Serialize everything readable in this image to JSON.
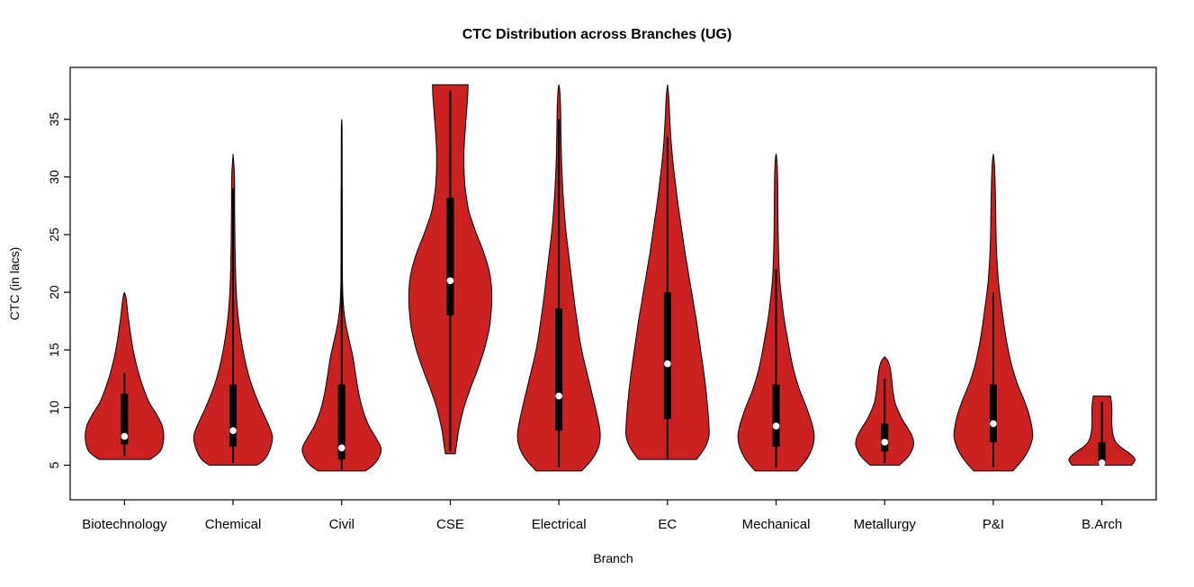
{
  "chart_data": {
    "type": "violin",
    "title": "CTC Distribution across Branches (UG)",
    "xlabel": "Branch",
    "ylabel": "CTC (in lacs)",
    "ylim": [
      2,
      39.5
    ],
    "yticks": [
      5,
      10,
      15,
      20,
      25,
      30,
      35
    ],
    "grid": false,
    "fill_color": "#cb2121",
    "outline_color": "#000000",
    "median_dot_color": "#ffffff",
    "categories": [
      "Biotechnology",
      "Chemical",
      "Civil",
      "CSE",
      "Electrical",
      "EC",
      "Mechanical",
      "Metallurgy",
      "P&I",
      "B.Arch"
    ],
    "violins": [
      {
        "branch": "Biotechnology",
        "width_scale": 0.95,
        "min": 5.5,
        "max": 20,
        "q1": 6.8,
        "median": 7.5,
        "q3": 11.2,
        "whisker_low": 5.8,
        "whisker_high": 13,
        "density": [
          [
            5.5,
            0.65
          ],
          [
            6,
            0.85
          ],
          [
            6.5,
            0.95
          ],
          [
            7.5,
            1.0
          ],
          [
            8.5,
            0.95
          ],
          [
            9.5,
            0.8
          ],
          [
            10.5,
            0.62
          ],
          [
            12,
            0.45
          ],
          [
            13.5,
            0.32
          ],
          [
            15,
            0.22
          ],
          [
            16.5,
            0.15
          ],
          [
            18,
            0.09
          ],
          [
            19.5,
            0.04
          ],
          [
            20,
            0.0
          ]
        ]
      },
      {
        "branch": "Chemical",
        "width_scale": 0.95,
        "min": 5,
        "max": 32,
        "q1": 6.6,
        "median": 8,
        "q3": 12,
        "whisker_low": 5.2,
        "whisker_high": 29,
        "density": [
          [
            5,
            0.6
          ],
          [
            5.5,
            0.8
          ],
          [
            6.5,
            0.95
          ],
          [
            7.5,
            1.0
          ],
          [
            8.5,
            0.9
          ],
          [
            10,
            0.7
          ],
          [
            11.5,
            0.52
          ],
          [
            13,
            0.38
          ],
          [
            15,
            0.25
          ],
          [
            17,
            0.16
          ],
          [
            19,
            0.1
          ],
          [
            21,
            0.07
          ],
          [
            24,
            0.05
          ],
          [
            27,
            0.04
          ],
          [
            30,
            0.035
          ],
          [
            32,
            0.0
          ]
        ]
      },
      {
        "branch": "Civil",
        "width_scale": 0.95,
        "min": 4.5,
        "max": 35,
        "q1": 5.5,
        "median": 6.5,
        "q3": 12,
        "whisker_low": 4.6,
        "whisker_high": 29,
        "density": [
          [
            4.5,
            0.6
          ],
          [
            5,
            0.8
          ],
          [
            5.7,
            0.95
          ],
          [
            6.5,
            1.0
          ],
          [
            7.5,
            0.85
          ],
          [
            8.5,
            0.68
          ],
          [
            10,
            0.52
          ],
          [
            11.5,
            0.42
          ],
          [
            13,
            0.35
          ],
          [
            14.5,
            0.28
          ],
          [
            16,
            0.18
          ],
          [
            17.5,
            0.09
          ],
          [
            19,
            0.04
          ],
          [
            21,
            0.02
          ],
          [
            25,
            0.015
          ],
          [
            30,
            0.012
          ],
          [
            34,
            0.01
          ],
          [
            35,
            0.0
          ]
        ]
      },
      {
        "branch": "CSE",
        "width_scale": 1.0,
        "min": 6,
        "max": 38,
        "q1": 18,
        "median": 21,
        "q3": 28.2,
        "whisker_low": 6.2,
        "whisker_high": 37.5,
        "density": [
          [
            6,
            0.12
          ],
          [
            7,
            0.16
          ],
          [
            8,
            0.2
          ],
          [
            9,
            0.26
          ],
          [
            10,
            0.33
          ],
          [
            11,
            0.42
          ],
          [
            12,
            0.52
          ],
          [
            13,
            0.63
          ],
          [
            14,
            0.73
          ],
          [
            15,
            0.82
          ],
          [
            16,
            0.89
          ],
          [
            17,
            0.95
          ],
          [
            18,
            0.98
          ],
          [
            19,
            1.0
          ],
          [
            20,
            1.0
          ],
          [
            21,
            0.98
          ],
          [
            22,
            0.93
          ],
          [
            23,
            0.85
          ],
          [
            24,
            0.75
          ],
          [
            25,
            0.64
          ],
          [
            26,
            0.54
          ],
          [
            27,
            0.45
          ],
          [
            28,
            0.4
          ],
          [
            29,
            0.36
          ],
          [
            30,
            0.34
          ],
          [
            31,
            0.33
          ],
          [
            32,
            0.33
          ],
          [
            33,
            0.34
          ],
          [
            34,
            0.36
          ],
          [
            35,
            0.38
          ],
          [
            36,
            0.4
          ],
          [
            37,
            0.42
          ],
          [
            38,
            0.43
          ]
        ]
      },
      {
        "branch": "Electrical",
        "width_scale": 1.0,
        "min": 4.5,
        "max": 38,
        "q1": 8,
        "median": 11,
        "q3": 18.6,
        "whisker_low": 4.8,
        "whisker_high": 35,
        "density": [
          [
            4.5,
            0.55
          ],
          [
            5.5,
            0.8
          ],
          [
            6.5,
            0.95
          ],
          [
            7.5,
            1.0
          ],
          [
            8.5,
            0.97
          ],
          [
            10,
            0.88
          ],
          [
            11.5,
            0.78
          ],
          [
            13,
            0.68
          ],
          [
            14.5,
            0.58
          ],
          [
            16,
            0.5
          ],
          [
            17.5,
            0.44
          ],
          [
            19,
            0.38
          ],
          [
            20.5,
            0.33
          ],
          [
            22,
            0.28
          ],
          [
            23.5,
            0.23
          ],
          [
            25,
            0.18
          ],
          [
            26.5,
            0.14
          ],
          [
            28,
            0.11
          ],
          [
            30,
            0.08
          ],
          [
            32,
            0.06
          ],
          [
            34,
            0.05
          ],
          [
            36,
            0.04
          ],
          [
            37.5,
            0.02
          ],
          [
            38,
            0.0
          ]
        ]
      },
      {
        "branch": "EC",
        "width_scale": 1.0,
        "min": 5.5,
        "max": 38,
        "q1": 9,
        "median": 13.8,
        "q3": 20,
        "whisker_low": 5.6,
        "whisker_high": 33.5,
        "density": [
          [
            5.5,
            0.7
          ],
          [
            6.5,
            0.9
          ],
          [
            7.5,
            1.0
          ],
          [
            8.5,
            1.0
          ],
          [
            10,
            0.97
          ],
          [
            11.5,
            0.93
          ],
          [
            13,
            0.88
          ],
          [
            14.5,
            0.82
          ],
          [
            16,
            0.76
          ],
          [
            17.5,
            0.7
          ],
          [
            19,
            0.63
          ],
          [
            20.5,
            0.56
          ],
          [
            22,
            0.49
          ],
          [
            23.5,
            0.42
          ],
          [
            25,
            0.36
          ],
          [
            26.5,
            0.3
          ],
          [
            28,
            0.24
          ],
          [
            29.5,
            0.19
          ],
          [
            31,
            0.14
          ],
          [
            32.5,
            0.1
          ],
          [
            34,
            0.07
          ],
          [
            35.5,
            0.05
          ],
          [
            37,
            0.03
          ],
          [
            38,
            0.0
          ]
        ]
      },
      {
        "branch": "Mechanical",
        "width_scale": 0.92,
        "min": 4.5,
        "max": 32,
        "q1": 6.6,
        "median": 8.4,
        "q3": 12,
        "whisker_low": 4.8,
        "whisker_high": 22,
        "density": [
          [
            4.5,
            0.55
          ],
          [
            5.5,
            0.8
          ],
          [
            6.5,
            0.95
          ],
          [
            7.5,
            1.0
          ],
          [
            8.5,
            0.95
          ],
          [
            10,
            0.8
          ],
          [
            11.5,
            0.62
          ],
          [
            13,
            0.48
          ],
          [
            14.5,
            0.38
          ],
          [
            16,
            0.3
          ],
          [
            17.5,
            0.22
          ],
          [
            19,
            0.16
          ],
          [
            20.5,
            0.11
          ],
          [
            22,
            0.08
          ],
          [
            24,
            0.06
          ],
          [
            26,
            0.05
          ],
          [
            28,
            0.045
          ],
          [
            30,
            0.04
          ],
          [
            31.5,
            0.02
          ],
          [
            32,
            0.0
          ]
        ]
      },
      {
        "branch": "Metallurgy",
        "width_scale": 0.7,
        "min": 5,
        "max": 14.4,
        "q1": 6.2,
        "median": 7,
        "q3": 8.6,
        "whisker_low": 5.2,
        "whisker_high": 12.5,
        "density": [
          [
            5,
            0.5
          ],
          [
            5.5,
            0.72
          ],
          [
            6,
            0.88
          ],
          [
            6.8,
            1.0
          ],
          [
            7.5,
            0.95
          ],
          [
            8.2,
            0.8
          ],
          [
            9,
            0.6
          ],
          [
            9.8,
            0.45
          ],
          [
            10.5,
            0.35
          ],
          [
            11.5,
            0.28
          ],
          [
            12.5,
            0.24
          ],
          [
            13.3,
            0.2
          ],
          [
            14,
            0.12
          ],
          [
            14.4,
            0.0
          ]
        ]
      },
      {
        "branch": "P&I",
        "width_scale": 0.95,
        "min": 4.5,
        "max": 32,
        "q1": 7,
        "median": 8.6,
        "q3": 12,
        "whisker_low": 4.8,
        "whisker_high": 20,
        "density": [
          [
            4.5,
            0.5
          ],
          [
            5.5,
            0.75
          ],
          [
            6.5,
            0.92
          ],
          [
            7.5,
            1.0
          ],
          [
            8.5,
            0.97
          ],
          [
            9.5,
            0.9
          ],
          [
            10.5,
            0.8
          ],
          [
            12,
            0.62
          ],
          [
            13.5,
            0.48
          ],
          [
            15,
            0.38
          ],
          [
            16.5,
            0.3
          ],
          [
            18,
            0.24
          ],
          [
            19.5,
            0.18
          ],
          [
            21,
            0.13
          ],
          [
            23,
            0.09
          ],
          [
            25,
            0.07
          ],
          [
            27,
            0.06
          ],
          [
            29,
            0.05
          ],
          [
            31,
            0.03
          ],
          [
            32,
            0.0
          ]
        ]
      },
      {
        "branch": "B.Arch",
        "width_scale": 0.8,
        "min": 5,
        "max": 11,
        "q1": 5,
        "median": 5.2,
        "q3": 7,
        "whisker_low": 5,
        "whisker_high": 10.5,
        "density": [
          [
            5,
            0.9
          ],
          [
            5.5,
            1.0
          ],
          [
            6,
            0.85
          ],
          [
            6.5,
            0.6
          ],
          [
            7,
            0.42
          ],
          [
            7.7,
            0.33
          ],
          [
            8.5,
            0.3
          ],
          [
            9.3,
            0.3
          ],
          [
            10,
            0.3
          ],
          [
            10.6,
            0.28
          ],
          [
            11,
            0.26
          ]
        ]
      }
    ]
  }
}
